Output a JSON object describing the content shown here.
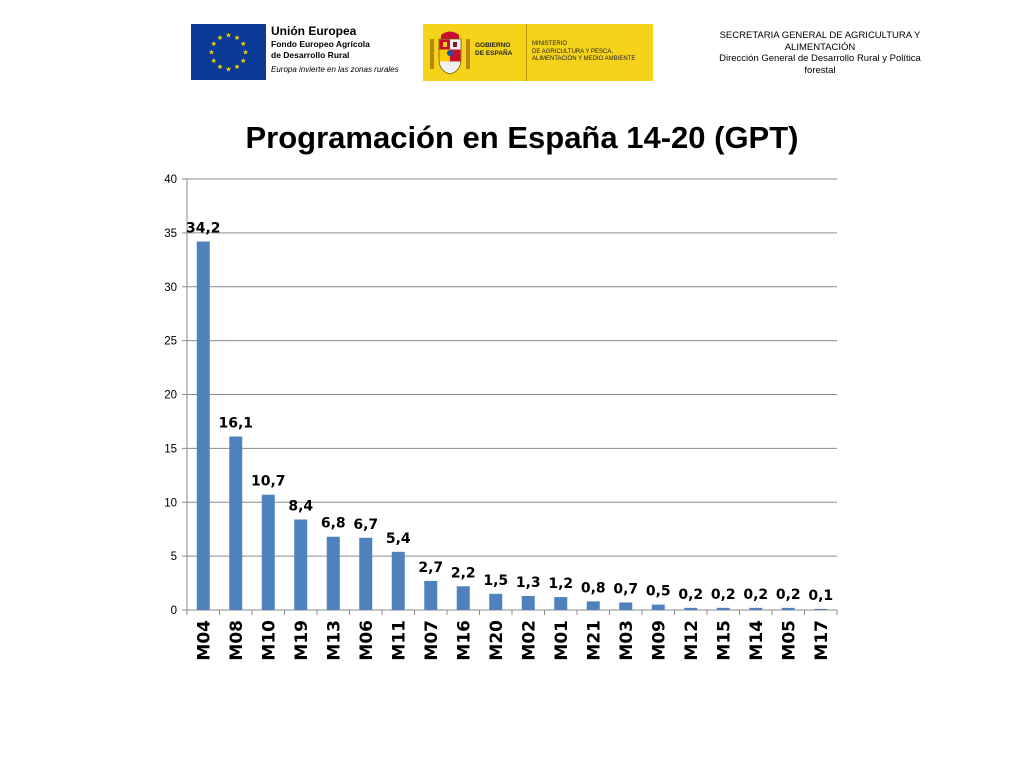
{
  "header": {
    "eu": {
      "title": "Unión Europea",
      "fund_line1": "Fondo Europeo Agrícola",
      "fund_line2": "de Desarrollo Rural",
      "motto": "Europa invierte en las zonas rurales",
      "flag_color": "#0b3a96",
      "star_color": "#ffd200"
    },
    "spain": {
      "gov_line1": "GOBIERNO",
      "gov_line2": "DE ESPAÑA",
      "ministry_line1": "MINISTERIO",
      "ministry_line2": "DE AGRICULTURA Y PESCA,",
      "ministry_line3": "ALIMENTACIÓN Y MEDIO AMBIENTE",
      "background_color": "#f6d31b"
    },
    "secretaria": {
      "line1": "SECRETARIA GENERAL DE AGRICULTURA Y",
      "line2": "ALIMENTACIÓN",
      "line3": "Dirección General de Desarrollo Rural y  Política",
      "line4": "forestal"
    }
  },
  "chart_data": {
    "type": "bar",
    "title": "Programación en España 14-20 (GPT)",
    "xlabel": "",
    "ylabel": "",
    "categories": [
      "M04",
      "M08",
      "M10",
      "M19",
      "M13",
      "M06",
      "M11",
      "M07",
      "M16",
      "M20",
      "M02",
      "M01",
      "M21",
      "M03",
      "M09",
      "M12",
      "M15",
      "M14",
      "M05",
      "M17"
    ],
    "values": [
      34.2,
      16.1,
      10.7,
      8.4,
      6.8,
      6.7,
      5.4,
      2.7,
      2.2,
      1.5,
      1.3,
      1.2,
      0.8,
      0.7,
      0.5,
      0.2,
      0.2,
      0.2,
      0.2,
      0.1
    ],
    "data_labels": [
      "34,2",
      "16,1",
      "10,7",
      "8,4",
      "6,8",
      "6,7",
      "5,4",
      "2,7",
      "2,2",
      "1,5",
      "1,3",
      "1,2",
      "0,8",
      "0,7",
      "0,5",
      "0,2",
      "0,2",
      "0,2",
      "0,2",
      "0,1"
    ],
    "ylim": [
      0,
      40
    ],
    "yticks": [
      0,
      5,
      10,
      15,
      20,
      25,
      30,
      35,
      40
    ],
    "ytick_labels": [
      "0",
      "5",
      "10",
      "15",
      "20",
      "25",
      "30",
      "35",
      "40"
    ],
    "grid": true,
    "legend": "none",
    "bar_color": "#4f81bd"
  }
}
